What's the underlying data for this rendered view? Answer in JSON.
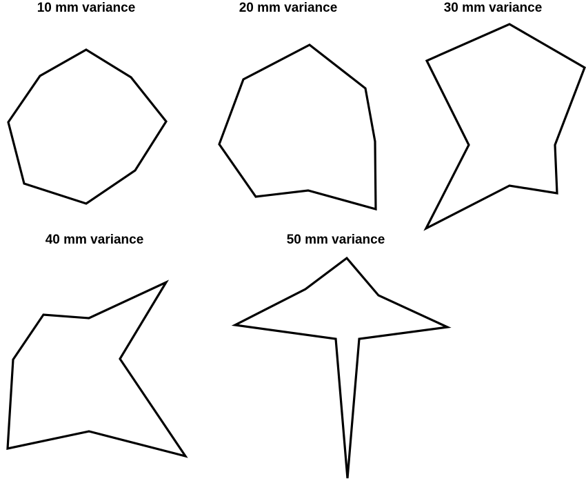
{
  "panels": [
    {
      "id": "10",
      "title": "10 mm variance"
    },
    {
      "id": "20",
      "title": "20 mm variance"
    },
    {
      "id": "30",
      "title": "30 mm variance"
    },
    {
      "id": "40",
      "title": "40 mm variance"
    },
    {
      "id": "50",
      "title": "50 mm variance"
    }
  ],
  "colors": {
    "stroke": "#000000",
    "background": "#ffffff"
  }
}
